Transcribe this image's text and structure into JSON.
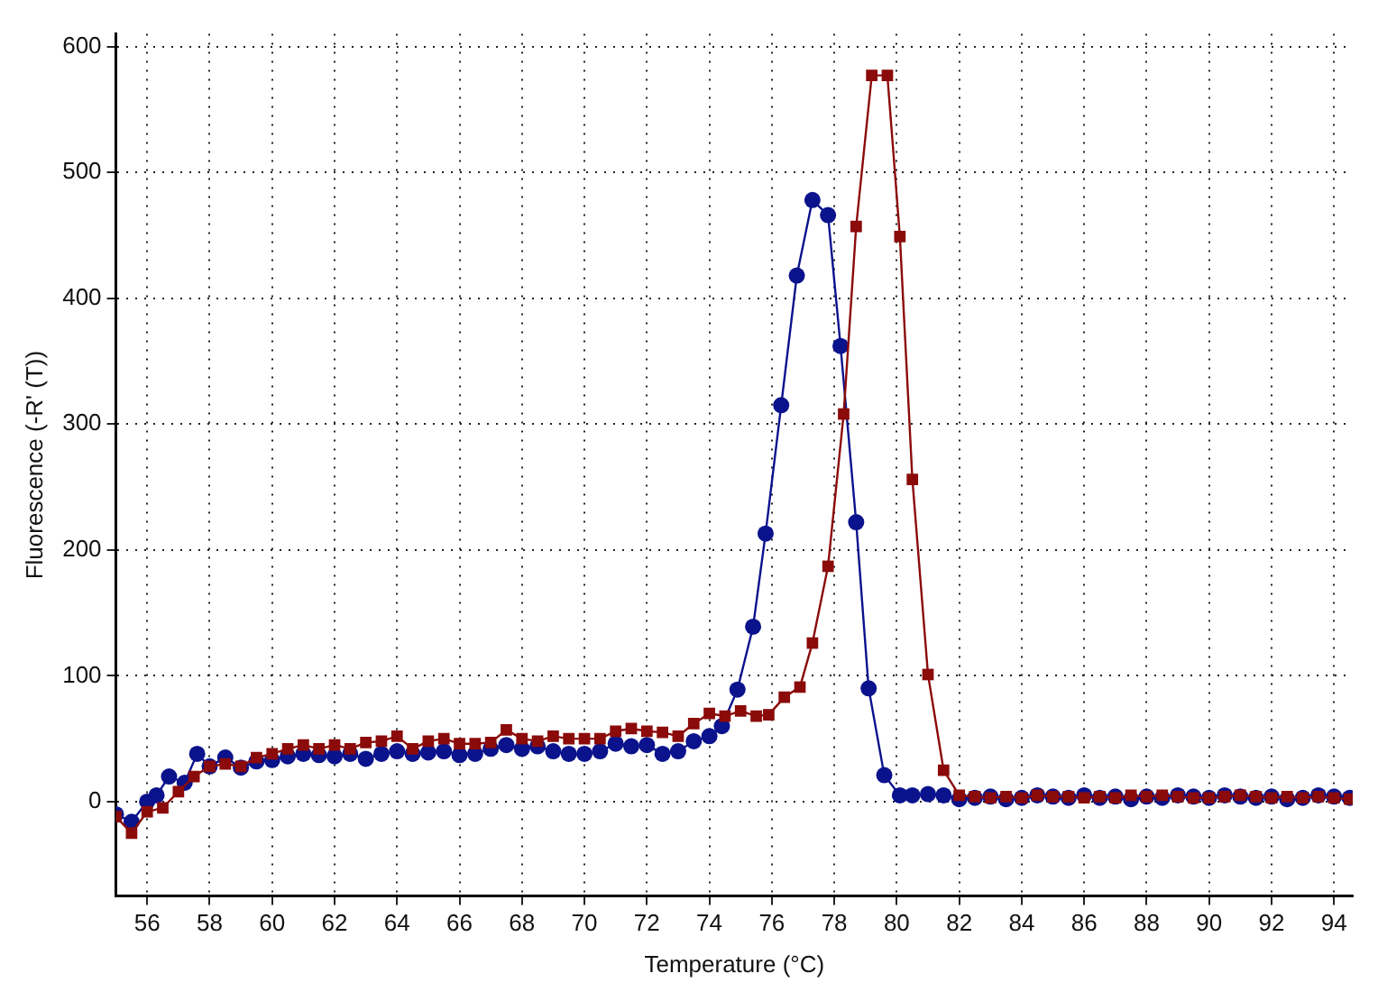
{
  "chart_data": {
    "type": "line",
    "xlabel": "Temperature (°C)",
    "ylabel": "Fluorescence (-R' (T))",
    "xlim": [
      55,
      94.6
    ],
    "xticks": [
      56,
      58,
      60,
      62,
      64,
      66,
      68,
      70,
      72,
      74,
      76,
      78,
      80,
      82,
      84,
      86,
      88,
      90,
      92,
      94
    ],
    "ylim": [
      -75,
      610
    ],
    "yticks": [
      0,
      100,
      200,
      300,
      400,
      500,
      600
    ],
    "grid": true,
    "legend": false,
    "line_style": "solid",
    "series": [
      {
        "color": "#0a128c",
        "marker": "circle",
        "x": [
          55,
          55.5,
          56,
          56.3,
          56.7,
          57.2,
          57.6,
          58,
          58.5,
          59,
          59.5,
          60,
          60.5,
          61,
          61.5,
          62,
          62.5,
          63,
          63.5,
          64,
          64.5,
          65,
          65.5,
          66,
          66.5,
          67,
          67.5,
          68,
          68.5,
          69,
          69.5,
          70,
          70.5,
          71,
          71.5,
          72,
          72.5,
          73,
          73.5,
          74,
          74.4,
          74.9,
          75.4,
          75.8,
          76.3,
          76.8,
          77.3,
          77.8,
          78.2,
          78.7,
          79.1,
          79.6,
          80.1,
          80.5,
          81,
          81.5,
          82,
          82.5,
          83,
          83.5,
          84,
          84.5,
          85,
          85.5,
          86,
          86.5,
          87,
          87.5,
          88,
          88.5,
          89,
          89.5,
          90,
          90.5,
          91,
          91.5,
          92,
          92.5,
          93,
          93.5,
          94,
          94.5
        ],
        "values": [
          -10,
          -16,
          0,
          5,
          20,
          15,
          38,
          28,
          35,
          27,
          32,
          33,
          36,
          38,
          37,
          36,
          38,
          34,
          38,
          40,
          38,
          39,
          40,
          37,
          38,
          42,
          45,
          42,
          44,
          40,
          38,
          38,
          40,
          46,
          44,
          45,
          38,
          40,
          48,
          52,
          60,
          89,
          139,
          213,
          315,
          418,
          478,
          466,
          362,
          222,
          90,
          21,
          5,
          5,
          6,
          5,
          2,
          3,
          4,
          2,
          3,
          5,
          4,
          3,
          5,
          3,
          4,
          2,
          4,
          3,
          5,
          4,
          3,
          5,
          4,
          3,
          4,
          2,
          3,
          5,
          4,
          3
        ]
      },
      {
        "color": "#8b0a0a",
        "marker": "square",
        "x": [
          55,
          55.5,
          56,
          56.5,
          57,
          57.5,
          58,
          58.5,
          59,
          59.5,
          60,
          60.5,
          61,
          61.5,
          62,
          62.5,
          63,
          63.5,
          64,
          64.5,
          65,
          65.5,
          66,
          66.5,
          67,
          67.5,
          68,
          68.5,
          69,
          69.5,
          70,
          70.5,
          71,
          71.5,
          72,
          72.5,
          73,
          73.5,
          74,
          74.5,
          75,
          75.5,
          75.9,
          76.4,
          76.9,
          77.3,
          77.8,
          78.3,
          78.7,
          79.2,
          79.7,
          80.1,
          80.5,
          81,
          81.5,
          82,
          82.5,
          83,
          83.5,
          84,
          84.5,
          85,
          85.5,
          86,
          86.5,
          87,
          87.5,
          88,
          88.5,
          89,
          89.5,
          90,
          90.5,
          91,
          91.5,
          92,
          92.5,
          93,
          93.5,
          94,
          94.5
        ],
        "values": [
          -12,
          -25,
          -8,
          -5,
          8,
          20,
          28,
          30,
          28,
          35,
          38,
          42,
          45,
          42,
          45,
          42,
          47,
          48,
          52,
          42,
          48,
          50,
          46,
          46,
          47,
          57,
          50,
          48,
          52,
          50,
          50,
          50,
          56,
          58,
          56,
          55,
          52,
          62,
          70,
          68,
          72,
          68,
          69,
          83,
          91,
          126,
          187,
          308,
          457,
          577,
          577,
          449,
          256,
          101,
          25,
          5,
          4,
          3,
          4,
          3,
          5,
          4,
          4,
          3,
          4,
          3,
          5,
          4,
          5,
          4,
          3,
          3,
          4,
          5,
          4,
          3,
          4,
          3,
          4,
          3,
          2
        ]
      }
    ]
  }
}
